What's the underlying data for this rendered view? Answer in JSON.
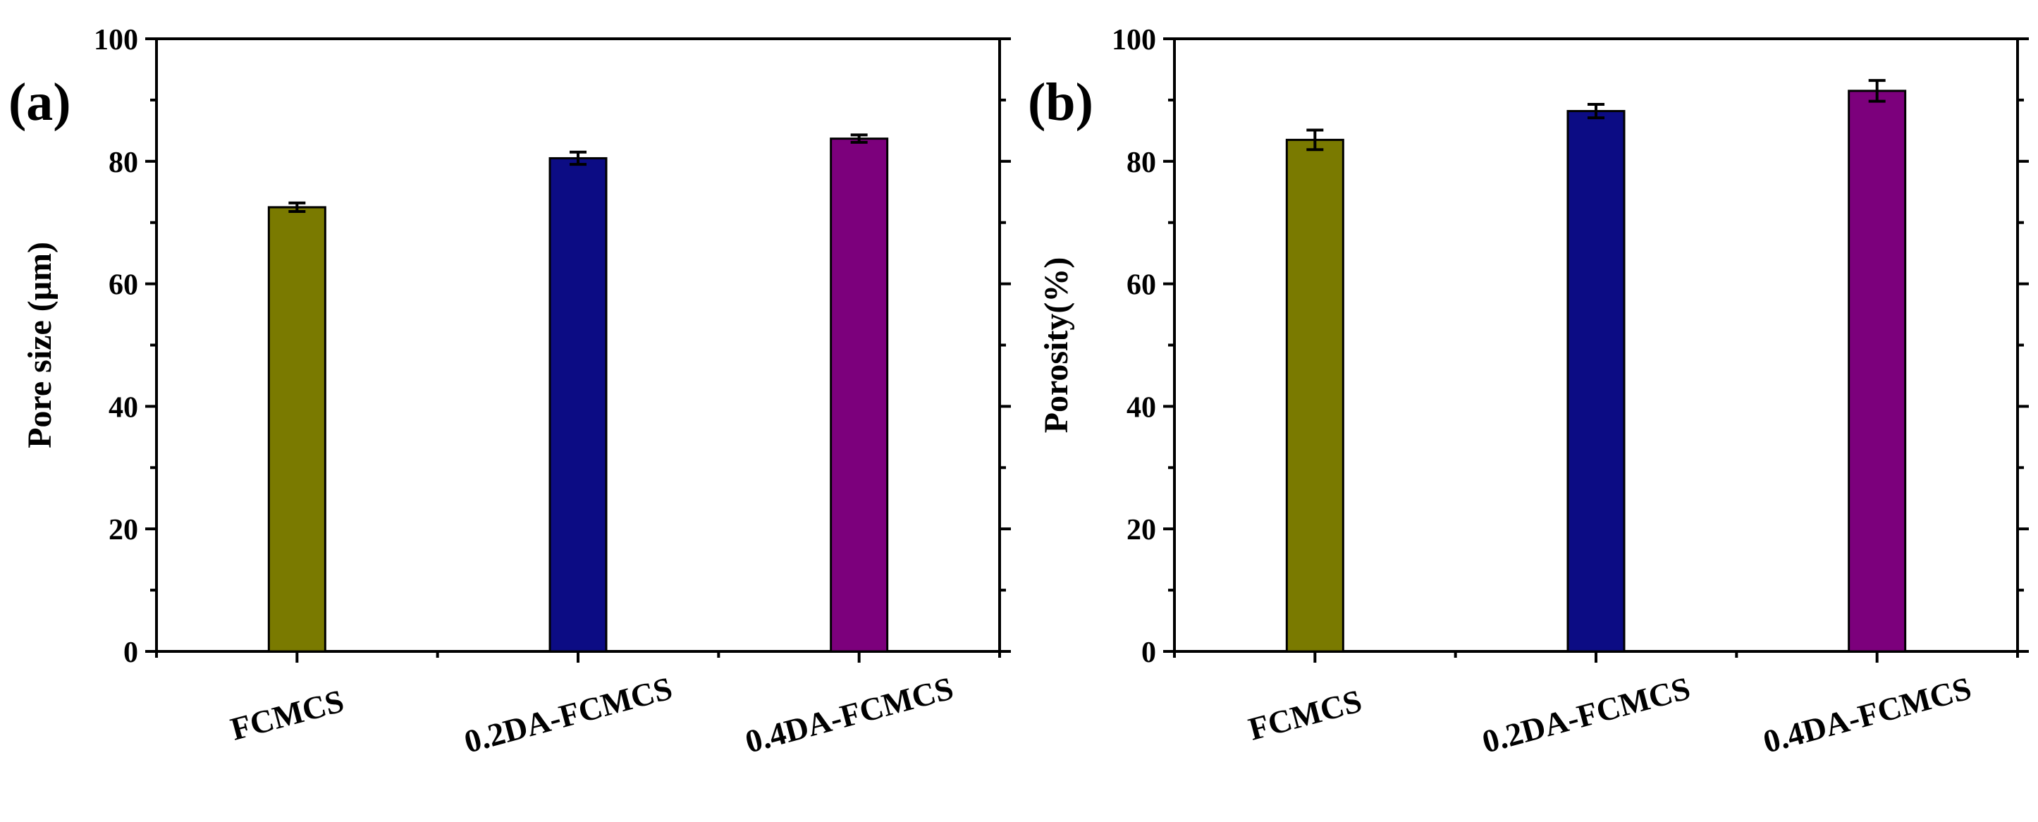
{
  "chart_data": [
    {
      "type": "bar",
      "panel_label": "(a)",
      "title": "",
      "xlabel": "",
      "ylabel": "Pore size (μm)",
      "ylim": [
        0,
        100
      ],
      "yticks": [
        "0",
        "20",
        "40",
        "60",
        "80",
        "100"
      ],
      "categories": [
        "FCMCS",
        "0.2DA-FCMCS",
        "0.4DA-FCMCS"
      ],
      "values": [
        72.5,
        80.5,
        83.7
      ],
      "errors": [
        0.7,
        1.0,
        0.6
      ],
      "colors": [
        "#7a7a00",
        "#0c0c84",
        "#7c007c"
      ],
      "grid": false
    },
    {
      "type": "bar",
      "panel_label": "(b)",
      "title": "",
      "xlabel": "",
      "ylabel": "Porosity(%)",
      "ylim": [
        0,
        100
      ],
      "yticks": [
        "0",
        "20",
        "40",
        "60",
        "80",
        "100"
      ],
      "categories": [
        "FCMCS",
        "0.2DA-FCMCS",
        "0.4DA-FCMCS"
      ],
      "values": [
        83.5,
        88.2,
        91.5
      ],
      "errors": [
        1.6,
        1.1,
        1.7
      ],
      "colors": [
        "#7a7a00",
        "#0c0c84",
        "#7c007c"
      ],
      "grid": false
    }
  ]
}
